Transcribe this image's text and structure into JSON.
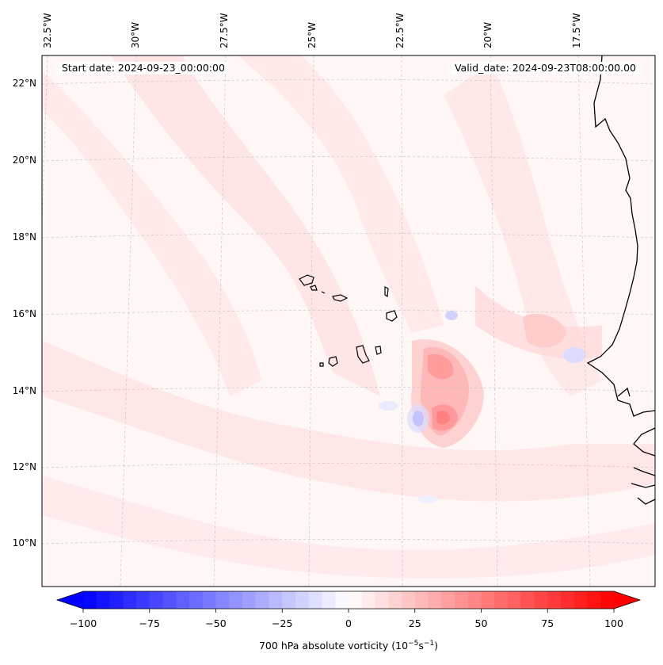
{
  "header": {
    "start_date": "Start date: 2024-09-23_00:00:00",
    "valid_date": "Valid_date: 2024-09-23T08:00:00.00"
  },
  "axes": {
    "lon_labels": [
      "32.5°W",
      "30°W",
      "27.5°W",
      "25°W",
      "22.5°W",
      "20°W",
      "17.5°W"
    ],
    "lat_labels": [
      "22°N",
      "20°N",
      "18°N",
      "16°N",
      "14°N",
      "12°N",
      "10°N"
    ]
  },
  "colorbar": {
    "label_text": "700 hPa absolute vorticity (10",
    "label_exp1": "−5",
    "label_mid": "s",
    "label_exp2": "−1",
    "label_end": ")",
    "min": -100,
    "max": 100,
    "step": 5,
    "tick_labels": [
      "−100",
      "−75",
      "−50",
      "−25",
      "0",
      "25",
      "50",
      "75",
      "100"
    ],
    "colors": {
      "negative": "#0000ff",
      "neutral": "#ffffff",
      "positive": "#ff0000"
    }
  },
  "field": {
    "features": [
      {
        "name": "strong-positive-vorticity-max",
        "value": 45
      },
      {
        "name": "negative-vorticity-min",
        "value": -25
      }
    ]
  }
}
